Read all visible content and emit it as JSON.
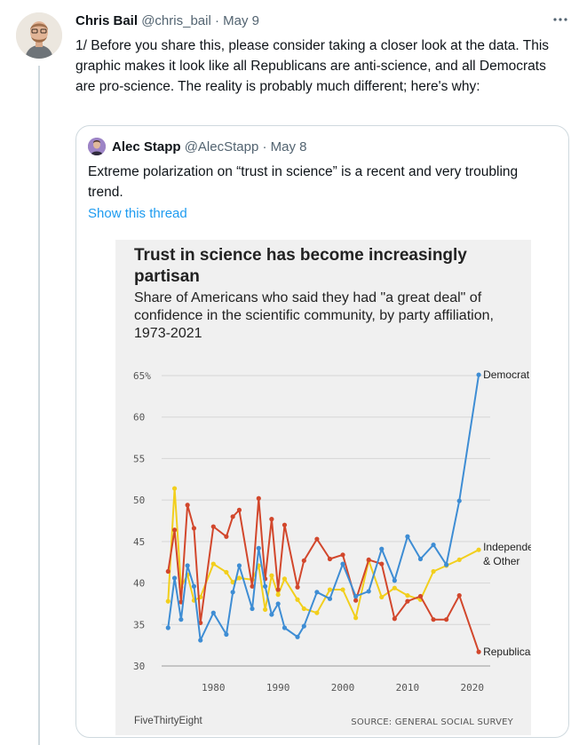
{
  "tweet": {
    "author_name": "Chris Bail",
    "author_handle": "@chris_bail",
    "separator": "·",
    "date": "May 9",
    "more_icon": "more-icon",
    "text": "1/ Before you share this, please consider taking a closer look at the data. This graphic makes it look like all Republicans are anti-science, and all Democrats are pro-science. The reality is probably much different; here's why:"
  },
  "quoted_tweet": {
    "author_name": "Alec Stapp",
    "author_handle": "@AlecStapp",
    "separator": "·",
    "date": "May 8",
    "text": "Extreme polarization on “trust in science” is a recent and very troubling trend.",
    "show_thread": "Show this thread"
  },
  "chart_data": {
    "type": "line",
    "title": "Trust in science has become increasingly partisan",
    "subtitle": "Share of Americans who said they had \"a great deal\" of confidence in the scientific community, by party affiliation, 1973-2021",
    "brand": "FiveThirtyEight",
    "source": "SOURCE: GENERAL SOCIAL SURVEY",
    "xlabel": "",
    "ylabel": "",
    "ylim": [
      30,
      65
    ],
    "xlim": [
      1973,
      2021
    ],
    "yticks": [
      "65%",
      "60",
      "55",
      "50",
      "45",
      "40",
      "35",
      "30"
    ],
    "ytick_values": [
      65,
      60,
      55,
      50,
      45,
      40,
      35,
      30
    ],
    "xticks": [
      "1980",
      "1990",
      "2000",
      "2010",
      "2020"
    ],
    "xtick_values": [
      1980,
      1990,
      2000,
      2010,
      2020
    ],
    "grid": true,
    "legend": "direct labels at line ends",
    "x": [
      1973,
      1974,
      1975,
      1976,
      1977,
      1978,
      1980,
      1982,
      1983,
      1984,
      1986,
      1987,
      1988,
      1989,
      1990,
      1991,
      1993,
      1994,
      1996,
      1998,
      2000,
      2002,
      2004,
      2006,
      2008,
      2010,
      2012,
      2014,
      2016,
      2018,
      2021
    ],
    "series": [
      {
        "name": "Democrat",
        "color": "#3e8dd4",
        "values": [
          34.6,
          40.6,
          35.6,
          42.1,
          39.6,
          33.1,
          36.4,
          33.8,
          38.9,
          42.1,
          36.9,
          44.2,
          39.6,
          36.2,
          37.5,
          34.6,
          33.5,
          34.8,
          38.9,
          38.1,
          42.3,
          38.4,
          39.0,
          44.1,
          40.3,
          45.6,
          42.9,
          44.6,
          42.2,
          49.9,
          65.1
        ]
      },
      {
        "name": "Independent & Other",
        "color": "#f2cf1d",
        "values": [
          37.8,
          51.4,
          39.5,
          41.0,
          37.9,
          38.3,
          42.3,
          41.3,
          40.1,
          40.6,
          40.4,
          42.1,
          36.8,
          40.9,
          38.6,
          40.5,
          38.0,
          36.9,
          36.4,
          39.2,
          39.2,
          35.8,
          42.7,
          38.3,
          39.4,
          38.5,
          38.0,
          41.4,
          42.1,
          42.8,
          44.0
        ]
      },
      {
        "name": "Republican",
        "color": "#d2472c",
        "values": [
          41.4,
          46.4,
          37.7,
          49.4,
          46.6,
          35.2,
          46.8,
          45.6,
          48.0,
          48.8,
          39.6,
          50.2,
          40.5,
          47.7,
          39.2,
          47.0,
          39.5,
          42.7,
          45.3,
          42.9,
          43.4,
          37.9,
          42.8,
          42.3,
          35.7,
          37.8,
          38.4,
          35.6,
          35.6,
          38.5,
          31.7
        ]
      }
    ]
  }
}
